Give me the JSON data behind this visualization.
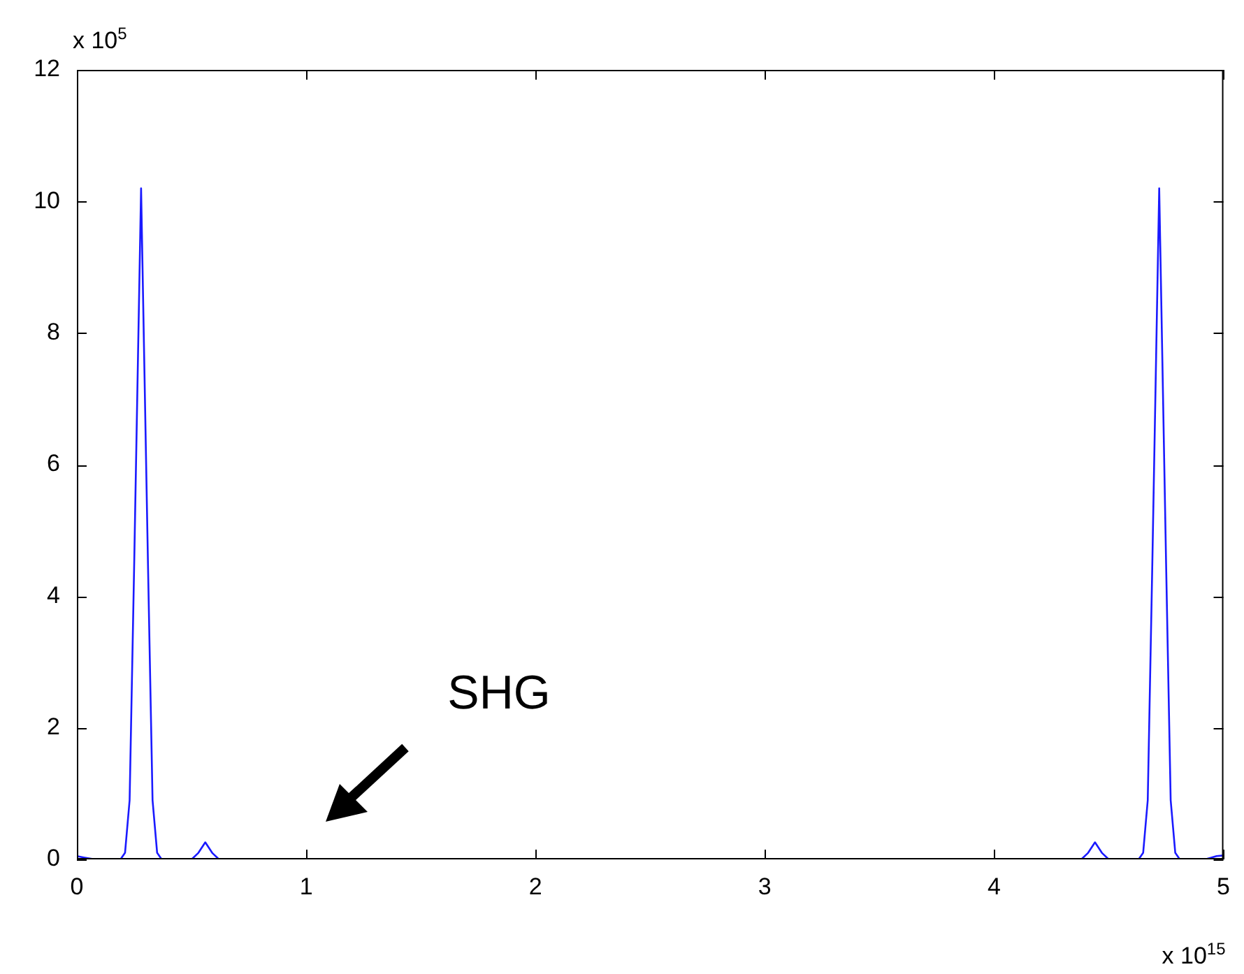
{
  "chart_data": {
    "type": "line",
    "xlabel": "x 10$^{15}$",
    "ylabel": "x 10$^{5}$",
    "x": [
      0,
      0.03,
      0.08,
      0.19,
      0.21,
      0.23,
      0.25,
      0.28,
      0.31,
      0.33,
      0.35,
      0.37,
      0.5,
      0.53,
      0.56,
      0.59,
      0.62,
      4.38,
      4.41,
      4.44,
      4.47,
      4.5,
      4.63,
      4.65,
      4.67,
      4.69,
      4.72,
      4.75,
      4.77,
      4.79,
      4.81,
      4.92,
      4.97,
      5
    ],
    "series": [
      {
        "color": "#1a1aff",
        "values": [
          0.05,
          0.03,
          0,
          0,
          0.1,
          0.9,
          4.5,
          10.2,
          4.5,
          0.9,
          0.1,
          0,
          0,
          0.1,
          0.26,
          0.1,
          0,
          0,
          0.1,
          0.26,
          0.1,
          0,
          0,
          0.1,
          0.9,
          4.5,
          10.2,
          4.5,
          0.9,
          0.1,
          0,
          0,
          0.05,
          0.06
        ]
      }
    ],
    "xlim": [
      0,
      5
    ],
    "xticks": [
      0,
      1,
      2,
      3,
      4,
      5
    ],
    "ylim": [
      0,
      12
    ],
    "yticks": [
      0,
      2,
      4,
      6,
      8,
      10,
      12
    ],
    "grid": false,
    "legend": false,
    "marker": "none",
    "line_style": "solid",
    "annotations": [
      "SHG"
    ]
  }
}
